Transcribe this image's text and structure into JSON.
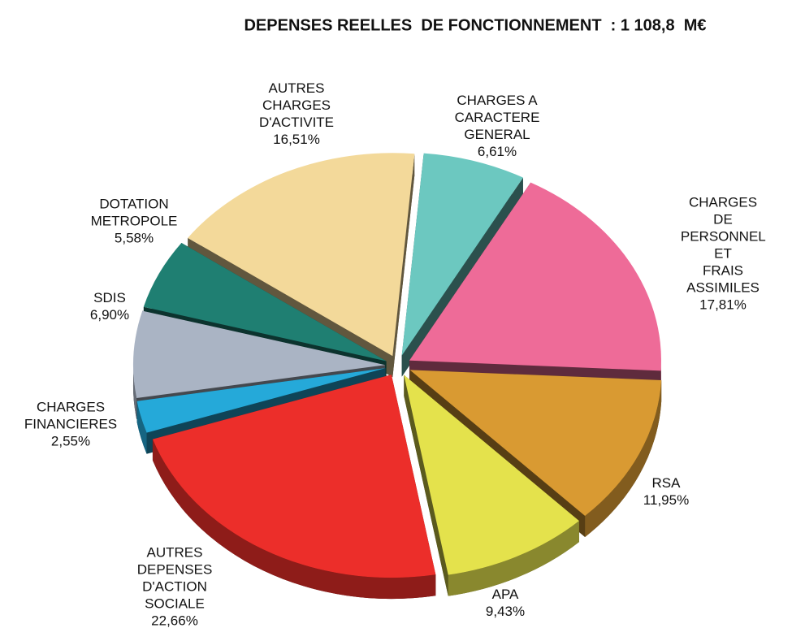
{
  "chart_data": {
    "type": "pie",
    "title": "DEPENSES REELLES  DE FONCTIONNEMENT  : 1 108,8  M€",
    "categories": [
      "CHARGES A\nCARACTERE\nGENERAL",
      "CHARGES DE\nPERSONNEL ET\nFRAIS ASSIMILES",
      "RSA",
      "APA",
      "AUTRES\nDEPENSES\nD'ACTION\nSOCIALE",
      "CHARGES\nFINANCIERES",
      "SDIS",
      "DOTATION\nMETROPOLE",
      "AUTRES\nCHARGES\nD'ACTIVITE"
    ],
    "values": [
      6.61,
      17.81,
      11.95,
      9.43,
      22.66,
      2.55,
      6.9,
      5.58,
      16.51
    ],
    "value_labels": [
      "6,61%",
      "17,81%",
      "11,95%",
      "9,43%",
      "22,66%",
      "2,55%",
      "6,90%",
      "5,58%",
      "16,51%"
    ],
    "colors": [
      "#6cc8c0",
      "#ee6b98",
      "#d99a32",
      "#e4e24c",
      "#ec2e2a",
      "#25a9d9",
      "#aab4c4",
      "#1f7f72",
      "#f3d99a"
    ]
  }
}
